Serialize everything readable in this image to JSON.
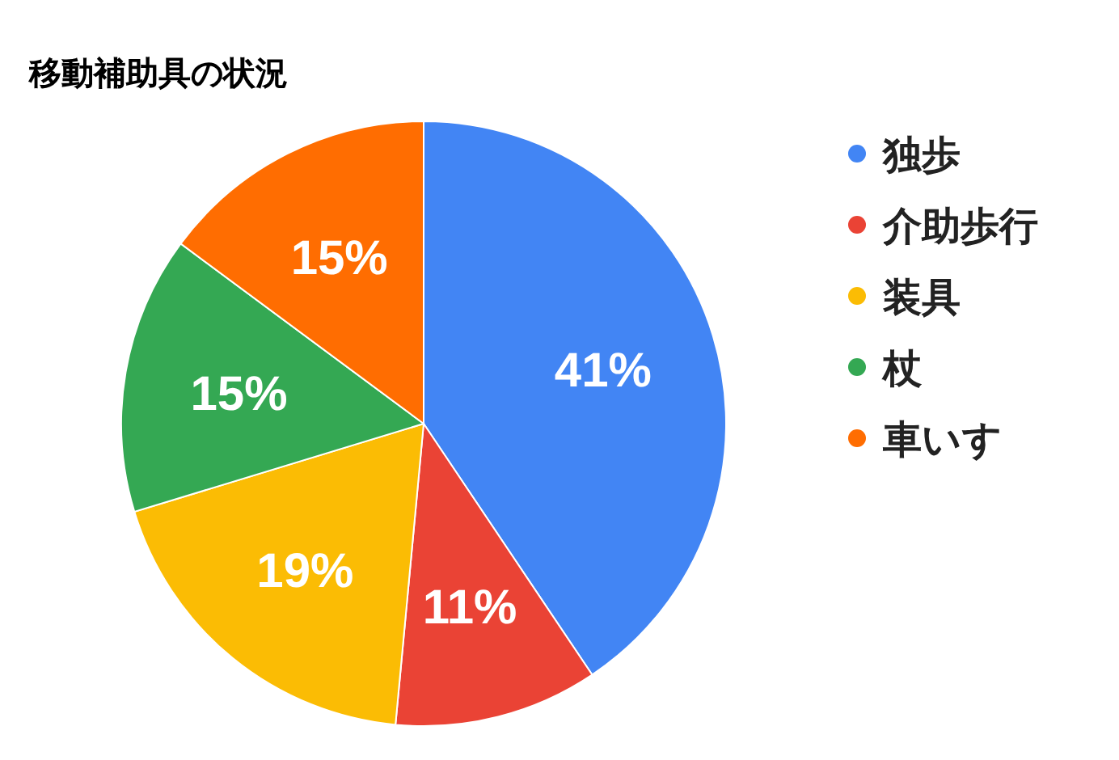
{
  "chart_data": {
    "type": "pie",
    "title": "移動補助具の状況",
    "categories": [
      "独歩",
      "介助歩行",
      "装具",
      "杖",
      "車いす"
    ],
    "values": [
      41,
      11,
      19,
      15,
      15
    ],
    "colors": [
      "#4285f4",
      "#ea4335",
      "#fbbc04",
      "#34a853",
      "#ff6d01"
    ],
    "value_labels": [
      "41%",
      "11%",
      "19%",
      "15%",
      "15%"
    ],
    "legend": "right"
  }
}
